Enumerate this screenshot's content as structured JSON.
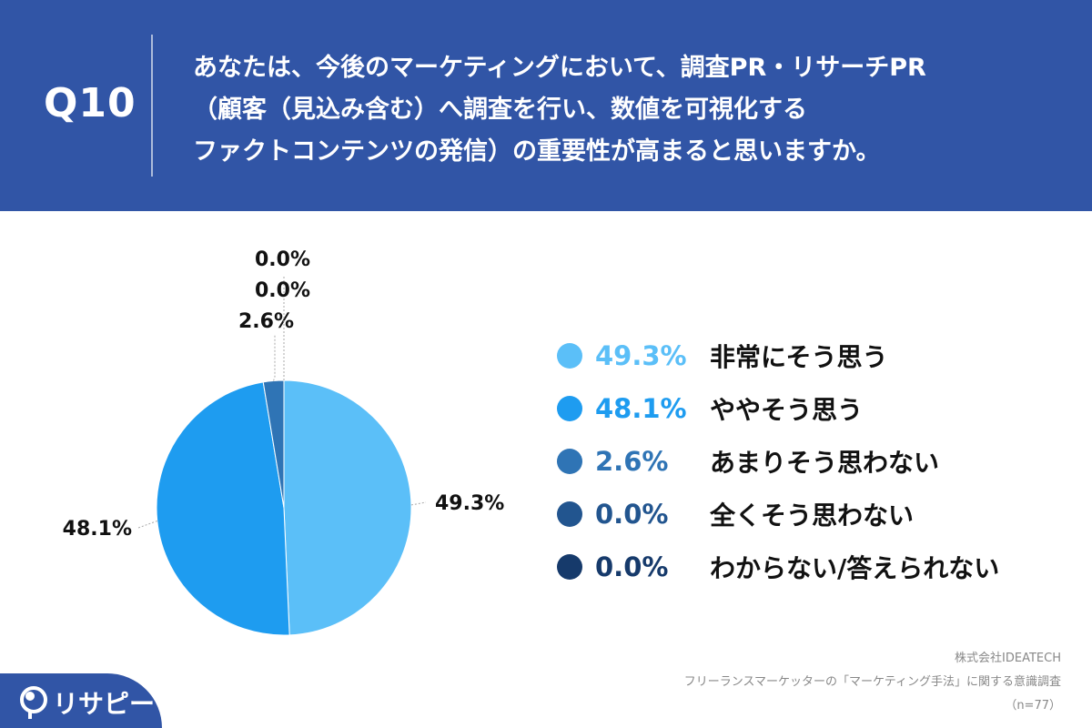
{
  "question": {
    "number": "Q10",
    "lines": [
      "あなたは、今後のマーケティングにおいて、調査PR・リサーチPR",
      "（顧客（見込み含む）へ調査を行い、数値を可視化する",
      "ファクトコンテンツの発信）の重要性が高まると思いますか。"
    ]
  },
  "chart_data": {
    "type": "pie",
    "categories": [
      "非常にそう思う",
      "ややそう思う",
      "あまりそう思わない",
      "全くそう思わない",
      "わからない/答えられない"
    ],
    "values": [
      49.3,
      48.1,
      2.6,
      0.0,
      0.0
    ],
    "data_labels": [
      "49.3%",
      "48.1%",
      "2.6%",
      "0.0%",
      "0.0%"
    ],
    "colors": [
      "#5bbff8",
      "#1e9cf0",
      "#2f74b5",
      "#22558f",
      "#163a6b"
    ],
    "legend_placement": "right"
  },
  "source": {
    "company": "株式会社IDEATECH",
    "survey": "フリーランスマーケッターの「マーケティング手法」に関する意識調査",
    "sample": "（n=77）"
  },
  "brand": {
    "name": "リサピー"
  }
}
